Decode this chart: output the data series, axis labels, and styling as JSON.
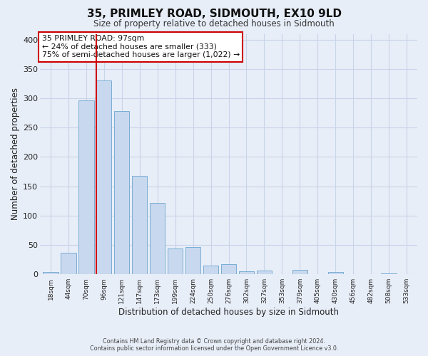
{
  "title": "35, PRIMLEY ROAD, SIDMOUTH, EX10 9LD",
  "subtitle": "Size of property relative to detached houses in Sidmouth",
  "xlabel": "Distribution of detached houses by size in Sidmouth",
  "ylabel": "Number of detached properties",
  "bar_labels": [
    "18sqm",
    "44sqm",
    "70sqm",
    "96sqm",
    "121sqm",
    "147sqm",
    "173sqm",
    "199sqm",
    "224sqm",
    "250sqm",
    "276sqm",
    "302sqm",
    "327sqm",
    "353sqm",
    "379sqm",
    "405sqm",
    "430sqm",
    "456sqm",
    "482sqm",
    "508sqm",
    "533sqm"
  ],
  "bar_values": [
    4,
    37,
    297,
    330,
    278,
    168,
    122,
    44,
    46,
    15,
    17,
    5,
    6,
    0,
    7,
    0,
    4,
    0,
    0,
    2,
    0
  ],
  "bar_color": "#c8d8ee",
  "bar_edge_color": "#7aaed4",
  "annotation_line1": "35 PRIMLEY ROAD: 97sqm",
  "annotation_line2": "← 24% of detached houses are smaller (333)",
  "annotation_line3": "75% of semi-detached houses are larger (1,022) →",
  "annotation_box_color": "#ffffff",
  "annotation_box_edge": "#cc0000",
  "vline_color": "#cc0000",
  "ylim": [
    0,
    410
  ],
  "yticks": [
    0,
    50,
    100,
    150,
    200,
    250,
    300,
    350,
    400
  ],
  "grid_color": "#c8d4e8",
  "background_color": "#e8eef8",
  "footer_line1": "Contains HM Land Registry data © Crown copyright and database right 2024.",
  "footer_line2": "Contains public sector information licensed under the Open Government Licence v3.0."
}
